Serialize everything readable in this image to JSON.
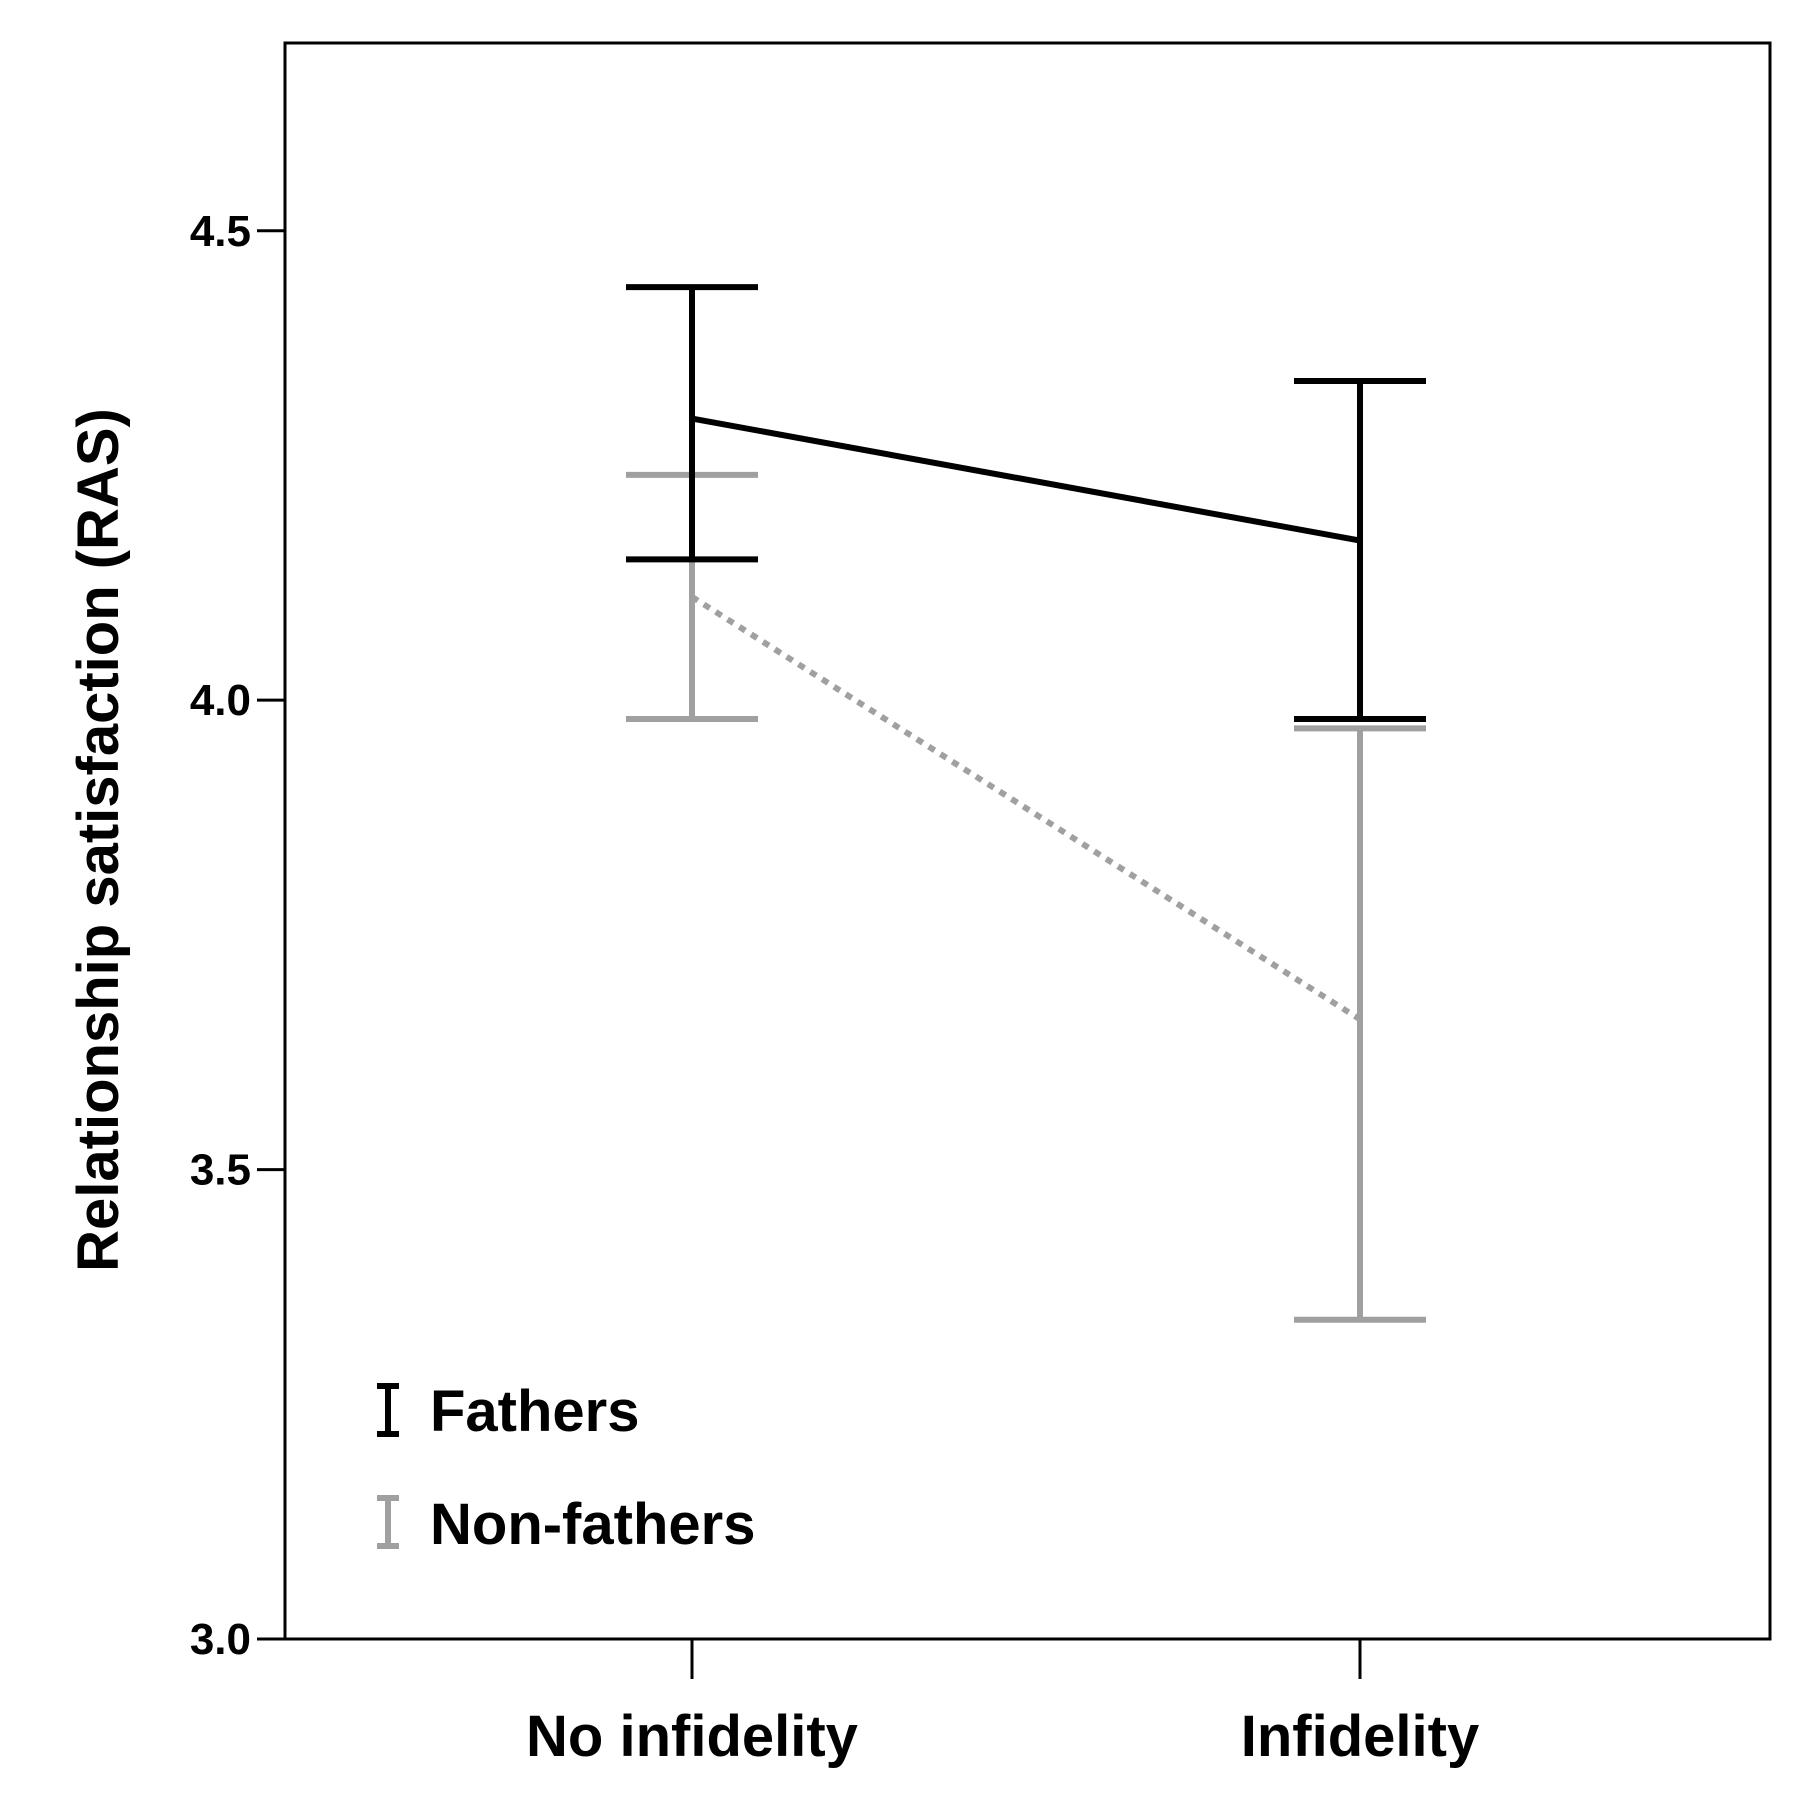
{
  "chart_data": {
    "type": "line",
    "title": "",
    "xlabel": "",
    "ylabel": "Relationship satisfaction (RAS)",
    "categories": [
      "No infidelity",
      "Infidelity"
    ],
    "ylim": [
      3.0,
      4.7
    ],
    "yticks": [
      3.0,
      3.5,
      4.0,
      4.5
    ],
    "ytick_labels": [
      "3.0",
      "3.5",
      "4.0",
      "4.5"
    ],
    "grid": false,
    "legend_position": "bottom-left",
    "series": [
      {
        "name": "Fathers",
        "color": "#000000",
        "line_style": "solid",
        "values": [
          4.3,
          4.17
        ],
        "ci_lower": [
          4.15,
          3.98
        ],
        "ci_upper": [
          4.44,
          4.34
        ]
      },
      {
        "name": "Non-fathers",
        "color": "#a0a0a0",
        "line_style": "dotted",
        "values": [
          4.11,
          3.66
        ],
        "ci_lower": [
          3.98,
          3.34
        ],
        "ci_upper": [
          4.24,
          3.97
        ]
      }
    ]
  }
}
